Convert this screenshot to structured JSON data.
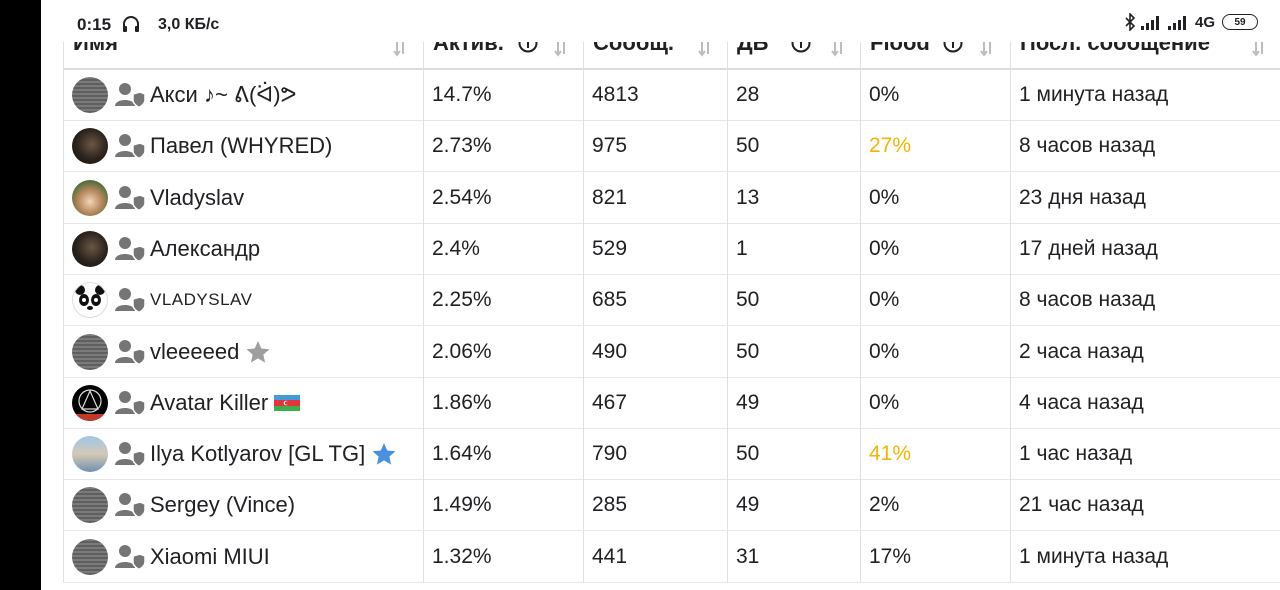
{
  "status_bar": {
    "time": "0:15",
    "speed": "3,0 КБ/с",
    "network": "4G",
    "battery": "59"
  },
  "table": {
    "headers": {
      "name": "Имя",
      "activity": "Актив.",
      "messages": "Сообщ.",
      "karma": "ДБ",
      "flood": "Flood",
      "last_message": "Посл. сообщение"
    },
    "rows": [
      {
        "name": "Акси ♪~ ᕕ(ᐛ)ᕗ",
        "activity": "14.7%",
        "messages": "4813",
        "karma": "28",
        "flood": "0%",
        "flood_color": "#202124",
        "last": "1 минута назад",
        "avatar": "gray-stripes",
        "badge": ""
      },
      {
        "name": "Павел (WHYRED)",
        "activity": "2.73%",
        "messages": "975",
        "karma": "50",
        "flood": "27%",
        "flood_color": "#f4b400",
        "last": "8 часов назад",
        "avatar": "dark-portrait",
        "badge": ""
      },
      {
        "name": "Vladyslav",
        "activity": "2.54%",
        "messages": "821",
        "karma": "13",
        "flood": "0%",
        "flood_color": "#202124",
        "last": "23 дня назад",
        "avatar": "sun-hat",
        "badge": ""
      },
      {
        "name": "Александр",
        "activity": "2.4%",
        "messages": "529",
        "karma": "1",
        "flood": "0%",
        "flood_color": "#202124",
        "last": "17 дней назад",
        "avatar": "dark-portrait",
        "badge": ""
      },
      {
        "name": "VLADYSLAV",
        "activity": "2.25%",
        "messages": "685",
        "karma": "50",
        "flood": "0%",
        "flood_color": "#202124",
        "last": "8 часов назад",
        "avatar": "panda",
        "badge": ""
      },
      {
        "name": "vleeeeed",
        "activity": "2.06%",
        "messages": "490",
        "karma": "50",
        "flood": "0%",
        "flood_color": "#202124",
        "last": "2 часа назад",
        "avatar": "gray-stripes",
        "badge": "gray-star-icon"
      },
      {
        "name": "Avatar Killer",
        "activity": "1.86%",
        "messages": "467",
        "karma": "49",
        "flood": "0%",
        "flood_color": "#202124",
        "last": "4 часа назад",
        "avatar": "black-emblem",
        "badge": "azerbaijan-flag-icon"
      },
      {
        "name": "Ilya Kotlyarov [GL TG]",
        "activity": "1.64%",
        "messages": "790",
        "karma": "50",
        "flood": "41%",
        "flood_color": "#f4b400",
        "last": "1 час назад",
        "avatar": "photo",
        "badge": "blue-star-icon"
      },
      {
        "name": "Sergey (Vince)",
        "activity": "1.49%",
        "messages": "285",
        "karma": "49",
        "flood": "2%",
        "flood_color": "#202124",
        "last": "21 час назад",
        "avatar": "gray-stripes",
        "badge": ""
      },
      {
        "name": "Xiaomi MIUI",
        "activity": "1.32%",
        "messages": "441",
        "karma": "31",
        "flood": "17%",
        "flood_color": "#202124",
        "last": "1 минута назад",
        "avatar": "gray-stripes",
        "badge": ""
      }
    ]
  },
  "colors": {
    "text": "#202124",
    "warning": "#f4b400",
    "blue_star": "#4a90e2",
    "gray_star": "#9e9e9e",
    "border": "#e0e0e0"
  }
}
